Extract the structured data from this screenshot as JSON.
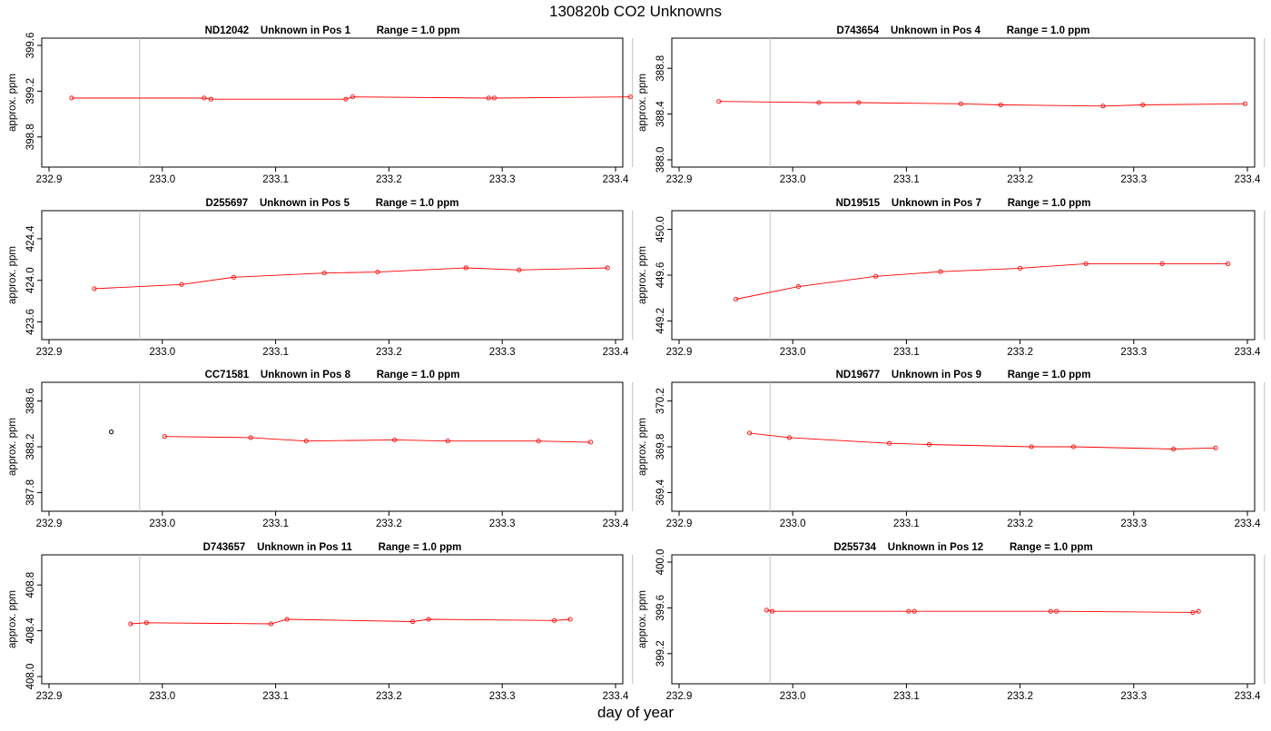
{
  "page": {
    "title": "130820b  CO2 Unknowns",
    "xlabel": "day of year",
    "ylabel": "approx. ppm"
  },
  "colors": {
    "series": "#ff0000",
    "marker_alt": "#000000",
    "vline": "#c0c0c0",
    "frame": "#000000"
  },
  "chart_data": [
    {
      "type": "line",
      "title": "ND12042    Unknown in Pos 1         Range = 1.0 ppm",
      "xlabel": "",
      "ylabel": "approx. ppm",
      "xlim": [
        232.9,
        233.4
      ],
      "ylim": [
        398.6,
        399.6
      ],
      "xticks": [
        "232.9",
        "233.0",
        "233.1",
        "233.2",
        "233.3",
        "233.4"
      ],
      "yticks": [
        "398.8",
        "399.2",
        "399.6"
      ],
      "vlines": [
        232.98,
        233.415
      ],
      "series": [
        {
          "x": [
            232.92,
            233.037,
            233.043,
            233.162,
            233.168,
            233.288,
            233.293,
            233.413
          ],
          "y": [
            399.14,
            399.14,
            399.13,
            399.13,
            399.15,
            399.14,
            399.14,
            399.15
          ]
        }
      ]
    },
    {
      "type": "line",
      "title": "D743654    Unknown in Pos 4         Range = 1.0 ppm",
      "xlabel": "",
      "ylabel": "approx. ppm",
      "xlim": [
        232.9,
        233.4
      ],
      "ylim": [
        388.0,
        389.0
      ],
      "xticks": [
        "232.9",
        "233.0",
        "233.1",
        "233.2",
        "233.3",
        "233.4"
      ],
      "yticks": [
        "388.0",
        "388.4",
        "388.8"
      ],
      "vlines": [
        232.98,
        233.415
      ],
      "series": [
        {
          "x": [
            232.935,
            233.023,
            233.058,
            233.148,
            233.183,
            233.273,
            233.308,
            233.398
          ],
          "y": [
            388.51,
            388.5,
            388.5,
            388.49,
            388.48,
            388.47,
            388.48,
            388.49
          ]
        }
      ]
    },
    {
      "type": "line",
      "title": "D255697    Unknown in Pos 5         Range = 1.0 ppm",
      "xlabel": "",
      "ylabel": "approx. ppm",
      "xlim": [
        232.9,
        233.4
      ],
      "ylim": [
        423.5,
        424.6
      ],
      "xticks": [
        "232.9",
        "233.0",
        "233.1",
        "233.2",
        "233.3",
        "233.4"
      ],
      "yticks": [
        "423.6",
        "424.0",
        "424.4"
      ],
      "vlines": [
        232.98,
        233.415
      ],
      "series": [
        {
          "x": [
            232.94,
            233.017,
            233.063,
            233.143,
            233.19,
            233.268,
            233.315,
            233.393
          ],
          "y": [
            423.92,
            423.96,
            424.03,
            424.07,
            424.08,
            424.12,
            424.1,
            424.12
          ]
        }
      ]
    },
    {
      "type": "line",
      "title": "ND19515    Unknown in Pos 7         Range = 1.0 ppm",
      "xlabel": "",
      "ylabel": "approx. ppm",
      "xlim": [
        232.9,
        233.4
      ],
      "ylim": [
        449.1,
        450.1
      ],
      "xticks": [
        "232.9",
        "233.0",
        "233.1",
        "233.2",
        "233.3",
        "233.4"
      ],
      "yticks": [
        "449.2",
        "449.6",
        "450.0"
      ],
      "vlines": [
        232.98,
        233.415
      ],
      "series": [
        {
          "x": [
            232.95,
            233.005,
            233.073,
            233.13,
            233.2,
            233.258,
            233.325,
            233.383
          ],
          "y": [
            449.39,
            449.5,
            449.59,
            449.63,
            449.66,
            449.7,
            449.7,
            449.7
          ]
        }
      ]
    },
    {
      "type": "line",
      "title": "CC71581    Unknown in Pos 8         Range = 1.0 ppm",
      "xlabel": "",
      "ylabel": "approx. ppm",
      "xlim": [
        232.9,
        233.4
      ],
      "ylim": [
        387.7,
        388.7
      ],
      "xticks": [
        "232.9",
        "233.0",
        "233.1",
        "233.2",
        "233.3",
        "233.4"
      ],
      "yticks": [
        "387.8",
        "388.2",
        "388.6"
      ],
      "vlines": [
        232.98,
        233.415
      ],
      "outlier": {
        "x": 232.955,
        "y": 388.33
      },
      "series": [
        {
          "x": [
            233.002,
            233.078,
            233.127,
            233.205,
            233.252,
            233.332,
            233.378
          ],
          "y": [
            388.29,
            388.28,
            388.25,
            388.26,
            388.25,
            388.25,
            388.24
          ]
        }
      ]
    },
    {
      "type": "line",
      "title": "ND19677    Unknown in Pos 9         Range = 1.0 ppm",
      "xlabel": "",
      "ylabel": "approx. ppm",
      "xlim": [
        232.9,
        233.4
      ],
      "ylim": [
        369.3,
        370.3
      ],
      "xticks": [
        "232.9",
        "233.0",
        "233.1",
        "233.2",
        "233.3",
        "233.4"
      ],
      "yticks": [
        "369.4",
        "369.8",
        "370.2"
      ],
      "vlines": [
        232.98,
        233.415
      ],
      "series": [
        {
          "x": [
            232.962,
            232.997,
            233.085,
            233.12,
            233.21,
            233.247,
            233.335,
            233.372
          ],
          "y": [
            369.92,
            369.88,
            369.83,
            369.82,
            369.8,
            369.8,
            369.78,
            369.79
          ]
        }
      ]
    },
    {
      "type": "line",
      "title": "D743657    Unknown in Pos 11         Range = 1.0 ppm",
      "xlabel": "",
      "ylabel": "approx. ppm",
      "xlim": [
        232.9,
        233.4
      ],
      "ylim": [
        408.0,
        409.0
      ],
      "xticks": [
        "232.9",
        "233.0",
        "233.1",
        "233.2",
        "233.3",
        "233.4"
      ],
      "yticks": [
        "408.0",
        "408.4",
        "408.8"
      ],
      "vlines": [
        232.98,
        233.415
      ],
      "series": [
        {
          "x": [
            232.972,
            232.986,
            233.096,
            233.11,
            233.221,
            233.235,
            233.346,
            233.36
          ],
          "y": [
            408.46,
            408.47,
            408.46,
            408.5,
            408.48,
            408.5,
            408.49,
            408.5
          ]
        }
      ]
    },
    {
      "type": "line",
      "title": "D255734    Unknown in Pos 12         Range = 1.0 ppm",
      "xlabel": "",
      "ylabel": "approx. ppm",
      "xlim": [
        232.9,
        233.4
      ],
      "ylim": [
        399.0,
        400.0
      ],
      "xticks": [
        "232.9",
        "233.0",
        "233.1",
        "233.2",
        "233.3",
        "233.4"
      ],
      "yticks": [
        "399.2",
        "399.6",
        "400.0"
      ],
      "vlines": [
        232.98,
        233.415
      ],
      "series": [
        {
          "x": [
            232.977,
            232.982,
            233.102,
            233.107,
            233.227,
            233.232,
            233.352,
            233.357
          ],
          "y": [
            399.58,
            399.57,
            399.57,
            399.57,
            399.57,
            399.57,
            399.56,
            399.57
          ]
        }
      ]
    }
  ]
}
